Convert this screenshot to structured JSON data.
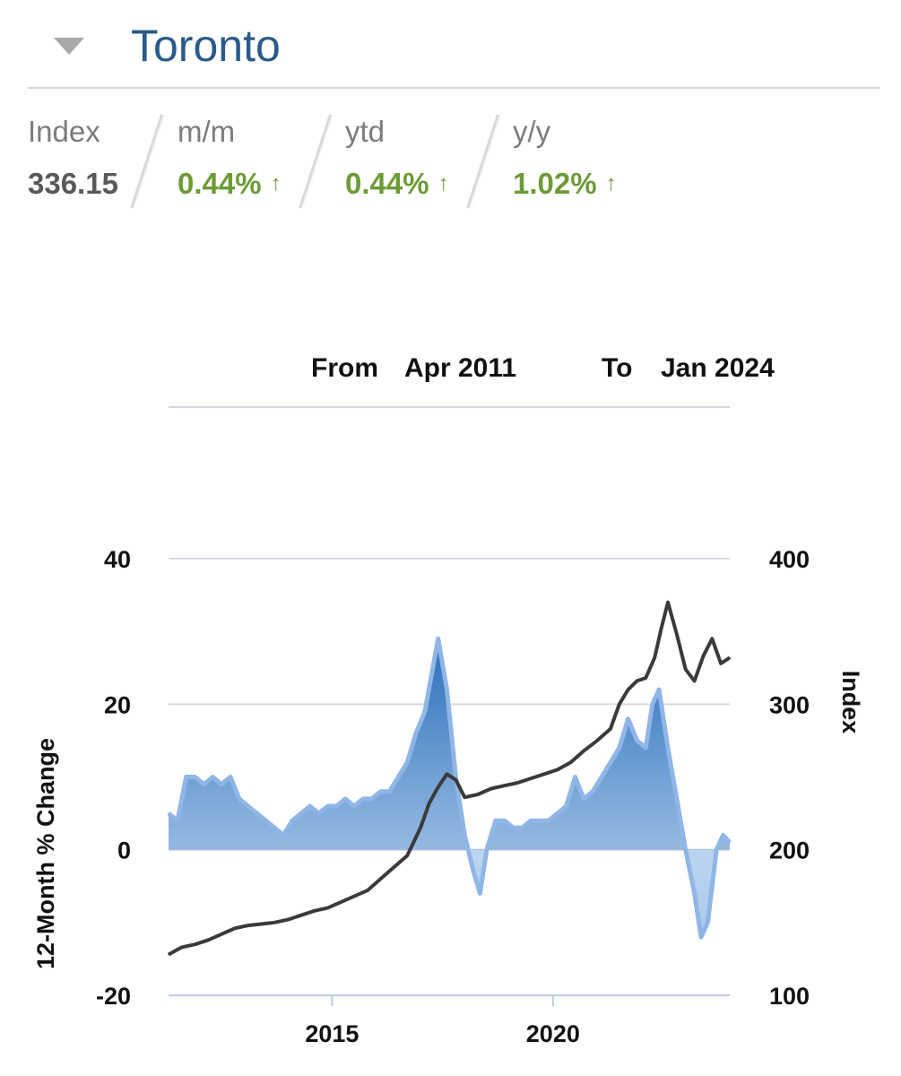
{
  "header": {
    "city": "Toronto",
    "stats": [
      {
        "label": "Index",
        "value": "336.15",
        "arrow": ""
      },
      {
        "label": "m/m",
        "value": "0.44%",
        "arrow": "↑"
      },
      {
        "label": "ytd",
        "value": "0.44%",
        "arrow": "↑"
      },
      {
        "label": "y/y",
        "value": "1.02%",
        "arrow": "↑"
      }
    ]
  },
  "range": {
    "from_label": "From",
    "from_value": "Apr 2011",
    "to_label": "To",
    "to_value": "Jan 2024"
  },
  "colors": {
    "area_fill": "#5b94d4",
    "area_line": "#8fb6e6",
    "index_line": "#3a3a3a",
    "up": "#6c9b37",
    "title": "#2a5a8a"
  },
  "chart_data": {
    "type": "area",
    "ylabel_left": "12-Month % Change",
    "ylabel_right": "Index",
    "ylim_left": [
      -20,
      40
    ],
    "ylim_right": [
      100,
      400
    ],
    "xlim": [
      2011.3,
      2024.0
    ],
    "left_ticks": [
      "40",
      "20",
      "0",
      "-20"
    ],
    "right_ticks": [
      "400",
      "300",
      "200",
      "100"
    ],
    "x_ticks": [
      "2015",
      "2020"
    ],
    "series": [
      {
        "name": "12-Month % Change",
        "axis": "left",
        "x": [
          2011.3,
          2011.5,
          2011.7,
          2011.9,
          2012.1,
          2012.3,
          2012.5,
          2012.7,
          2012.9,
          2013.1,
          2013.3,
          2013.5,
          2013.7,
          2013.9,
          2014.1,
          2014.3,
          2014.5,
          2014.7,
          2014.9,
          2015.1,
          2015.3,
          2015.5,
          2015.7,
          2015.9,
          2016.1,
          2016.3,
          2016.5,
          2016.7,
          2016.9,
          2017.1,
          2017.25,
          2017.4,
          2017.6,
          2017.8,
          2018.0,
          2018.2,
          2018.35,
          2018.5,
          2018.7,
          2018.9,
          2019.1,
          2019.3,
          2019.5,
          2019.7,
          2019.9,
          2020.1,
          2020.3,
          2020.5,
          2020.7,
          2020.9,
          2021.1,
          2021.3,
          2021.5,
          2021.7,
          2021.9,
          2022.1,
          2022.25,
          2022.4,
          2022.6,
          2022.8,
          2023.0,
          2023.2,
          2023.35,
          2023.5,
          2023.7,
          2023.85,
          2024.0
        ],
        "values": [
          5,
          4,
          10,
          10,
          9,
          10,
          9,
          10,
          7,
          6,
          5,
          4,
          3,
          2,
          4,
          5,
          6,
          5,
          6,
          6,
          7,
          6,
          7,
          7,
          8,
          8,
          10,
          12,
          16,
          19,
          24,
          29,
          22,
          10,
          2,
          -3,
          -6,
          0,
          4,
          4,
          3,
          3,
          4,
          4,
          4,
          5,
          6,
          10,
          7,
          8,
          10,
          12,
          14,
          18,
          15,
          14,
          20,
          22,
          14,
          7,
          0,
          -6,
          -12,
          -10,
          0,
          2,
          1
        ]
      },
      {
        "name": "Index",
        "axis": "right",
        "x": [
          2011.3,
          2011.6,
          2011.9,
          2012.2,
          2012.5,
          2012.8,
          2013.1,
          2013.4,
          2013.7,
          2014.0,
          2014.3,
          2014.6,
          2014.9,
          2015.2,
          2015.5,
          2015.8,
          2016.1,
          2016.4,
          2016.7,
          2017.0,
          2017.2,
          2017.4,
          2017.6,
          2017.8,
          2018.0,
          2018.3,
          2018.6,
          2018.9,
          2019.2,
          2019.5,
          2019.8,
          2020.1,
          2020.4,
          2020.7,
          2021.0,
          2021.3,
          2021.5,
          2021.7,
          2021.9,
          2022.1,
          2022.3,
          2022.45,
          2022.6,
          2022.8,
          2023.0,
          2023.2,
          2023.4,
          2023.6,
          2023.8,
          2024.0
        ],
        "values": [
          128,
          133,
          135,
          138,
          142,
          146,
          148,
          149,
          150,
          152,
          155,
          158,
          160,
          164,
          168,
          172,
          180,
          188,
          196,
          215,
          232,
          243,
          252,
          248,
          236,
          238,
          242,
          244,
          246,
          249,
          252,
          255,
          260,
          268,
          275,
          283,
          300,
          310,
          316,
          318,
          332,
          352,
          370,
          348,
          324,
          316,
          333,
          345,
          328,
          332
        ]
      }
    ]
  }
}
